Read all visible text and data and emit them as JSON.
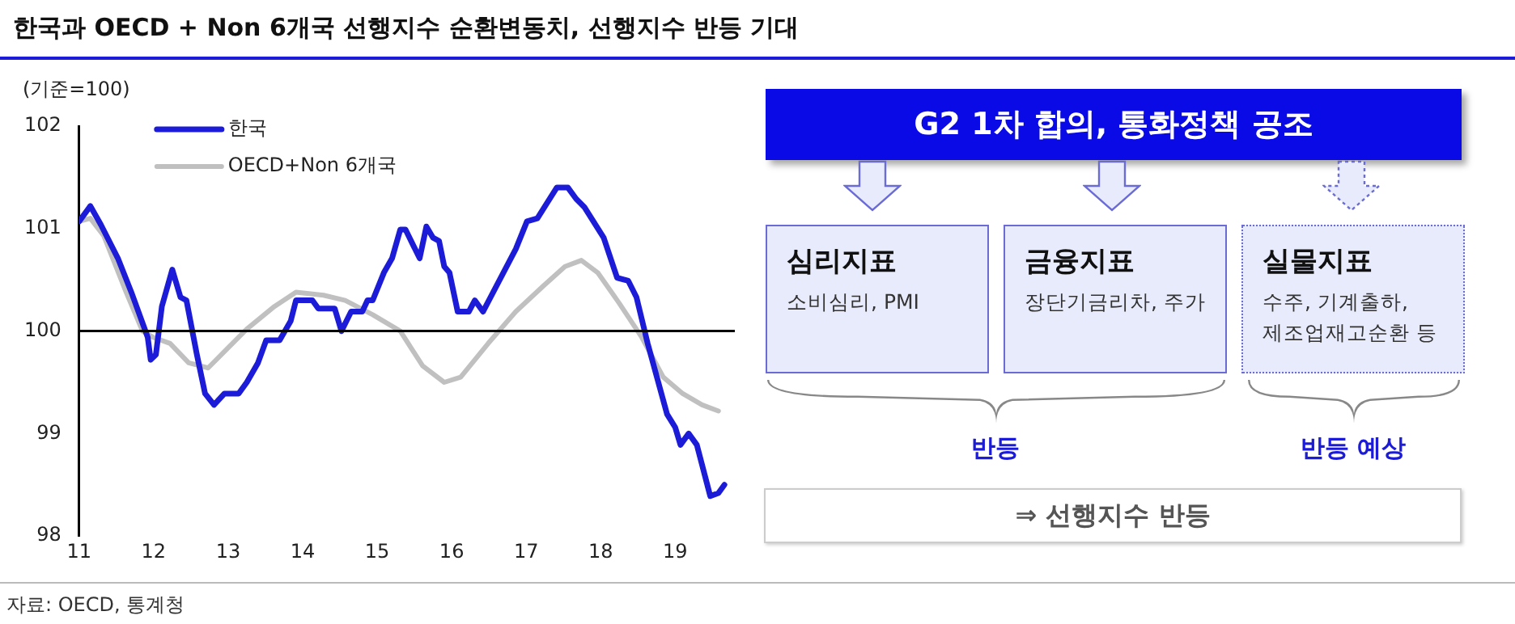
{
  "chart_data": {
    "type": "line",
    "title": "한국과 OECD + Non 6개국 선행지수 순환변동치, 선행지수 반등 기대",
    "ylabel": "(기준=100)",
    "xlim": [
      11,
      19.8
    ],
    "xticks": [
      11,
      12,
      13,
      14,
      15,
      16,
      17,
      18,
      19
    ],
    "ylim": [
      98,
      102
    ],
    "yticks": [
      98,
      99,
      100,
      101,
      102
    ],
    "grid": false,
    "legend": "top left",
    "marker": "none",
    "line_style": "solid",
    "ref_lines": [
      {
        "axis": "y",
        "value": 100,
        "color": "#000000"
      }
    ],
    "annotations": [
      "G2 1차 합의, 통화정책 공조",
      "심리지표",
      "소비심리, PMI",
      "금융지표",
      "장단기금리차, 주가",
      "실물지표",
      "수주, 기계출하,",
      "제조업재고순환 등",
      "반등",
      "반등 예상",
      "⇒ 선행지수 반등",
      "자료: OECD, 통계청"
    ],
    "series": [
      {
        "name": "한국",
        "color": "#1c1cd8",
        "x": [
          11.0,
          11.15,
          11.29,
          11.52,
          11.7,
          11.92,
          11.96,
          12.03,
          12.11,
          12.25,
          12.36,
          12.44,
          12.58,
          12.69,
          12.81,
          12.95,
          13.14,
          13.25,
          13.4,
          13.51,
          13.69,
          13.84,
          13.91,
          14.13,
          14.21,
          14.43,
          14.52,
          14.65,
          14.8,
          14.87,
          14.94,
          15.09,
          15.2,
          15.31,
          15.38,
          15.57,
          15.66,
          15.75,
          15.83,
          15.9,
          15.97,
          16.08,
          16.23,
          16.31,
          16.42,
          16.6,
          16.86,
          17.01,
          17.15,
          17.41,
          17.56,
          17.67,
          17.78,
          18.04,
          18.22,
          18.37,
          18.48,
          18.63,
          18.89,
          19.0,
          19.07,
          19.18,
          19.29,
          19.47,
          19.58,
          19.66
        ],
        "values": [
          101.07,
          101.22,
          101.04,
          100.71,
          100.38,
          99.94,
          99.72,
          99.77,
          100.24,
          100.6,
          100.33,
          100.3,
          99.77,
          99.39,
          99.28,
          99.39,
          99.39,
          99.5,
          99.69,
          99.91,
          99.91,
          100.1,
          100.3,
          100.3,
          100.22,
          100.22,
          100.0,
          100.19,
          100.19,
          100.3,
          100.3,
          100.57,
          100.71,
          100.99,
          100.99,
          100.71,
          101.02,
          100.91,
          100.88,
          100.63,
          100.57,
          100.19,
          100.19,
          100.3,
          100.19,
          100.44,
          100.8,
          101.07,
          101.1,
          101.4,
          101.4,
          101.29,
          101.21,
          100.91,
          100.52,
          100.49,
          100.33,
          99.88,
          99.19,
          99.06,
          98.89,
          99.0,
          98.89,
          98.39,
          98.42,
          98.5
        ]
      },
      {
        "name": "OECD+Non 6개국",
        "color": "#c0c0c0",
        "x": [
          11.0,
          11.15,
          11.33,
          11.63,
          11.85,
          11.99,
          12.22,
          12.47,
          12.73,
          12.95,
          13.25,
          13.62,
          13.91,
          14.28,
          14.57,
          14.94,
          15.31,
          15.61,
          15.9,
          16.12,
          16.49,
          16.86,
          17.23,
          17.52,
          17.74,
          17.96,
          18.25,
          18.55,
          18.84,
          19.1,
          19.36,
          19.58
        ],
        "values": [
          101.07,
          101.1,
          100.93,
          100.38,
          100.0,
          99.94,
          99.88,
          99.69,
          99.64,
          99.8,
          100.02,
          100.24,
          100.38,
          100.35,
          100.3,
          100.16,
          100.0,
          99.66,
          99.5,
          99.55,
          99.88,
          100.19,
          100.44,
          100.63,
          100.69,
          100.57,
          100.27,
          99.94,
          99.55,
          99.39,
          99.28,
          99.22
        ]
      }
    ]
  }
}
